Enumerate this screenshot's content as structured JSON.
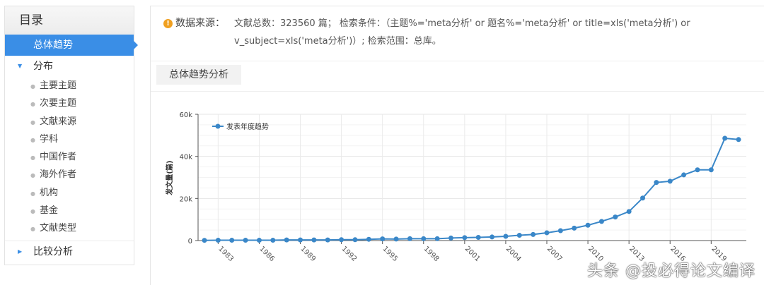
{
  "sidebar": {
    "title": "目录",
    "active": "总体趋势",
    "group1": "分布",
    "items": [
      "主要主题",
      "次要主题",
      "文献来源",
      "学科",
      "中国作者",
      "海外作者",
      "机构",
      "基金",
      "文献类型"
    ],
    "group2": "比较分析"
  },
  "info": {
    "label": "数据来源：",
    "text": "文献总数：323560 篇；  检索条件：（主题%='meta分析' or 题名%='meta分析' or title=xls('meta分析') or v_subject=xls('meta分析')）;  检索范围：总库。"
  },
  "tab": "总体趋势分析",
  "watermark": "头条 @投必得论文编译",
  "chart_data": {
    "type": "line",
    "title": "",
    "xlabel": "",
    "ylabel": "发文量(篇)",
    "ylim": [
      0,
      60000
    ],
    "yticks": [
      "0",
      "20k",
      "40k",
      "60k"
    ],
    "xtick_labels": [
      "1983",
      "1986",
      "1989",
      "1992",
      "1995",
      "1998",
      "2001",
      "2004",
      "2007",
      "2010",
      "2013",
      "2016",
      "2019"
    ],
    "legend_position": "top-left",
    "color": "#3a87c8",
    "grid": true,
    "series": [
      {
        "name": "发表年度趋势",
        "x": [
          1982,
          1983,
          1984,
          1985,
          1986,
          1987,
          1988,
          1989,
          1990,
          1991,
          1992,
          1993,
          1994,
          1995,
          1996,
          1997,
          1998,
          1999,
          2000,
          2001,
          2002,
          2003,
          2004,
          2005,
          2006,
          2007,
          2008,
          2009,
          2010,
          2011,
          2012,
          2013,
          2014,
          2015,
          2016,
          2017,
          2018,
          2019,
          2020,
          2021
        ],
        "y": [
          100,
          150,
          150,
          150,
          150,
          150,
          300,
          300,
          300,
          300,
          400,
          400,
          600,
          800,
          700,
          900,
          900,
          900,
          1200,
          1400,
          1500,
          1700,
          2000,
          2500,
          2900,
          3700,
          4700,
          5900,
          7300,
          9100,
          11200,
          13800,
          20200,
          27600,
          28200,
          31200,
          33600,
          33600,
          48600,
          48000
        ]
      }
    ]
  }
}
